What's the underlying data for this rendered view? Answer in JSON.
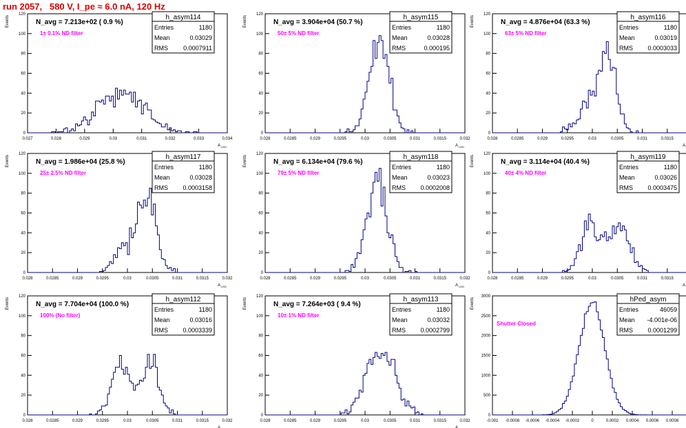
{
  "title": "run 2057,   580 V, I_pe ≈ 6.0 nA, 120 Hz",
  "colors": {
    "title": "#dd0000",
    "histogram": "#000080",
    "annotation": "#ff00ff",
    "frame": "#000000"
  },
  "chart_data": [
    {
      "type": "histogram",
      "name": "h_asym114",
      "navg": "N_avg = 7.213e+02 ( 0.9 %)",
      "filter": "1± 0.1% ND filter",
      "stats": {
        "entries": "1180",
        "mean": "0.03029",
        "rms": "0.0007911"
      },
      "ylabel": "Events",
      "xlabel": "A_LED",
      "xlim": [
        0.027,
        0.034
      ],
      "ylim": [
        0,
        120
      ],
      "xticks": [
        "0.027",
        "0.028",
        "0.029",
        "0.03",
        "0.031",
        "0.032",
        "0.033",
        "0.034"
      ],
      "yticks": [
        "0",
        "20",
        "40",
        "60",
        "80",
        "100",
        "120"
      ],
      "mean": 0.03029,
      "rms": 0.0007911,
      "entries": 1180,
      "bins": 100,
      "shape": "single"
    },
    {
      "type": "histogram",
      "name": "h_asym115",
      "navg": "N_avg = 3.904e+04 (50.7 %)",
      "filter": "50± 5% ND filter",
      "stats": {
        "entries": "1180",
        "mean": "0.03028",
        "rms": "0.000195"
      },
      "ylabel": "Events",
      "xlabel": "A_LED",
      "xlim": [
        0.028,
        0.032
      ],
      "ylim": [
        0,
        120
      ],
      "xticks": [
        "0.028",
        "0.0285",
        "0.029",
        "0.0295",
        "0.03",
        "0.0305",
        "0.031",
        "0.0315",
        "0.032"
      ],
      "yticks": [
        "0",
        "20",
        "40",
        "60",
        "80",
        "100",
        "120"
      ],
      "mean": 0.03028,
      "rms": 0.000195,
      "entries": 1180,
      "bins": 100,
      "shape": "single"
    },
    {
      "type": "histogram",
      "name": "h_asym116",
      "navg": "N_avg = 4.876e+04 (63.3 %)",
      "filter": "63± 5% ND filter",
      "stats": {
        "entries": "1180",
        "mean": "0.03019",
        "rms": "0.0003033"
      },
      "ylabel": "Events",
      "xlabel": "A_LED",
      "xlim": [
        0.028,
        0.032
      ],
      "ylim": [
        0,
        120
      ],
      "xticks": [
        "0.028",
        "0.0285",
        "0.029",
        "0.0295",
        "0.03",
        "0.0305",
        "0.031",
        "0.0315",
        "0.032"
      ],
      "yticks": [
        "0",
        "20",
        "40",
        "60",
        "80",
        "100",
        "120"
      ],
      "mean": 0.03019,
      "rms": 0.0003033,
      "entries": 1180,
      "bins": 100,
      "shape": "skewed"
    },
    {
      "type": "histogram",
      "name": "h_asym117",
      "navg": "N_avg = 1.986e+04 (25.8 %)",
      "filter": "25± 2.5% ND filter",
      "stats": {
        "entries": "1180",
        "mean": "0.03028",
        "rms": "0.0003158"
      },
      "ylabel": "Events",
      "xlabel": "A_LED",
      "xlim": [
        0.028,
        0.032
      ],
      "ylim": [
        0,
        120
      ],
      "xticks": [
        "0.028",
        "0.0285",
        "0.029",
        "0.0295",
        "0.03",
        "0.0305",
        "0.031",
        "0.0315",
        "0.032"
      ],
      "yticks": [
        "0",
        "20",
        "40",
        "60",
        "80",
        "100",
        "120"
      ],
      "mean": 0.03028,
      "rms": 0.0003158,
      "entries": 1180,
      "bins": 100,
      "shape": "skewed"
    },
    {
      "type": "histogram",
      "name": "h_asym118",
      "navg": "N_avg = 6.134e+04 (79.6 %)",
      "filter": "79± 5% ND filter",
      "stats": {
        "entries": "1180",
        "mean": "0.03023",
        "rms": "0.0002008"
      },
      "ylabel": "Events",
      "xlabel": "A_LED",
      "xlim": [
        0.028,
        0.032
      ],
      "ylim": [
        0,
        120
      ],
      "xticks": [
        "0.028",
        "0.0285",
        "0.029",
        "0.0295",
        "0.03",
        "0.0305",
        "0.031",
        "0.0315",
        "0.032"
      ],
      "yticks": [
        "0",
        "20",
        "40",
        "60",
        "80",
        "100",
        "120"
      ],
      "mean": 0.03023,
      "rms": 0.0002008,
      "entries": 1180,
      "bins": 100,
      "shape": "single"
    },
    {
      "type": "histogram",
      "name": "h_asym119",
      "navg": "N_avg = 3.114e+04 (40.4 %)",
      "filter": "40± 4% ND filter",
      "stats": {
        "entries": "1180",
        "mean": "0.03026",
        "rms": "0.0003475"
      },
      "ylabel": "Events",
      "xlabel": "A_LED",
      "xlim": [
        0.028,
        0.032
      ],
      "ylim": [
        0,
        120
      ],
      "xticks": [
        "0.028",
        "0.0285",
        "0.029",
        "0.0295",
        "0.03",
        "0.0305",
        "0.031",
        "0.0315",
        "0.032"
      ],
      "yticks": [
        "0",
        "20",
        "40",
        "60",
        "80",
        "100",
        "120"
      ],
      "mean": 0.03026,
      "rms": 0.0003475,
      "entries": 1180,
      "bins": 100,
      "shape": "double"
    },
    {
      "type": "histogram",
      "name": "h_asym112",
      "navg": "N_avg = 7.704e+04 (100.0 %)",
      "filter": "100% (No filter)",
      "stats": {
        "entries": "1180",
        "mean": "0.03016",
        "rms": "0.0003339"
      },
      "ylabel": "Events",
      "xlabel": "A_LED",
      "xlim": [
        0.028,
        0.032
      ],
      "ylim": [
        0,
        120
      ],
      "xticks": [
        "0.028",
        "0.0285",
        "0.029",
        "0.0295",
        "0.03",
        "0.0305",
        "0.031",
        "0.0315",
        "0.032"
      ],
      "yticks": [
        "0",
        "20",
        "40",
        "60",
        "80",
        "100",
        "120"
      ],
      "mean": 0.03016,
      "rms": 0.0003339,
      "entries": 1180,
      "bins": 100,
      "shape": "double"
    },
    {
      "type": "histogram",
      "name": "h_asym113",
      "navg": "N_avg = 7.264e+03 ( 9.4 %)",
      "filter": "10± 1% ND filter",
      "stats": {
        "entries": "1180",
        "mean": "0.03032",
        "rms": "0.0002799"
      },
      "ylabel": "Events",
      "xlabel": "A_LED",
      "xlim": [
        0.028,
        0.032
      ],
      "ylim": [
        0,
        120
      ],
      "xticks": [
        "0.028",
        "0.0285",
        "0.029",
        "0.0295",
        "0.03",
        "0.0305",
        "0.031",
        "0.0315",
        "0.032"
      ],
      "yticks": [
        "0",
        "20",
        "40",
        "60",
        "80",
        "100",
        "120"
      ],
      "mean": 0.03032,
      "rms": 0.0002799,
      "entries": 1180,
      "bins": 100,
      "shape": "single"
    },
    {
      "type": "histogram",
      "name": "hPed_asym",
      "navg": "",
      "filter": "Shutter Closed",
      "stats": {
        "entries": "46059",
        "mean": "-4.001e-06",
        "rms": "0.0001299"
      },
      "ylabel": "Events",
      "xlabel": "",
      "xlim": [
        -0.001,
        0.001
      ],
      "ylim": [
        0,
        3000
      ],
      "xticks": [
        "-0.001",
        "-0.0008",
        "-0.0006",
        "-0.0004",
        "-0.0002",
        "0",
        "0.0002",
        "0.0004",
        "0.0006",
        "0.0008",
        "0.001"
      ],
      "yticks": [
        "0",
        "500",
        "1000",
        "1500",
        "2000",
        "2500",
        "3000"
      ],
      "mean": -4.001e-06,
      "rms": 0.0001299,
      "entries": 46059,
      "bins": 100,
      "shape": "single"
    }
  ]
}
